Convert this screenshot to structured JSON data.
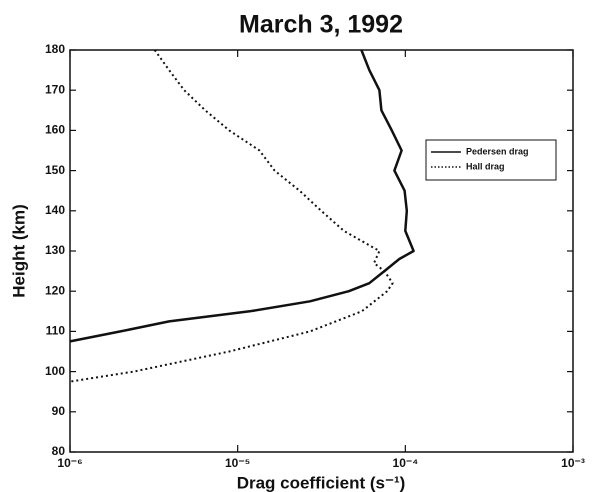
{
  "chart_data": {
    "type": "line",
    "title": "March 3, 1992",
    "x_label": "Drag coefficient (s⁻¹)",
    "y_label": "Height (km)",
    "x_scale": "log",
    "xlim": [
      1e-06,
      0.001
    ],
    "xticks": [
      {
        "value": 1e-06,
        "label": "10⁻⁶"
      },
      {
        "value": 1e-05,
        "label": "10⁻⁵"
      },
      {
        "value": 0.0001,
        "label": "10⁻⁴"
      },
      {
        "value": 0.001,
        "label": "10⁻³"
      }
    ],
    "ylim": [
      80,
      180
    ],
    "yticks": [
      80,
      90,
      100,
      110,
      120,
      130,
      140,
      150,
      160,
      170,
      180
    ],
    "legend": "right",
    "series": [
      {
        "name": "Pedersen drag",
        "color": "#111111",
        "dash": "solid",
        "x": [
          5.47e-05,
          6.1e-05,
          7e-05,
          7.2e-05,
          8.3e-05,
          9.5e-05,
          8.6e-05,
          9.9e-05,
          0.000102,
          0.0001,
          0.000112,
          9.2e-05,
          7.5e-05,
          6.1e-05,
          4.6e-05,
          2.7e-05,
          1.18e-05,
          3.9e-06,
          2e-06,
          1e-06
        ],
        "values": [
          180,
          175,
          170,
          165,
          160,
          155,
          150,
          145,
          140,
          135,
          130,
          128,
          125,
          122,
          120,
          117.5,
          115,
          112.5,
          110,
          107.5
        ]
      },
      {
        "name": "Hall drag",
        "color": "#111111",
        "dash": "dotted",
        "x": [
          3.2e-06,
          3.9e-06,
          4.8e-06,
          6.4e-06,
          8.9e-06,
          1.35e-05,
          1.66e-05,
          2.34e-05,
          3.15e-05,
          4.3e-05,
          7e-05,
          6.5e-05,
          7.5e-05,
          8.4e-05,
          7.8e-05,
          5.5e-05,
          2.7e-05,
          8.9e-06,
          2.4e-06,
          1e-06
        ],
        "values": [
          180,
          175,
          170,
          165,
          160,
          155,
          150,
          145,
          140,
          135,
          130,
          127,
          125,
          122,
          120,
          115,
          110,
          105,
          100,
          97.5
        ]
      }
    ]
  }
}
